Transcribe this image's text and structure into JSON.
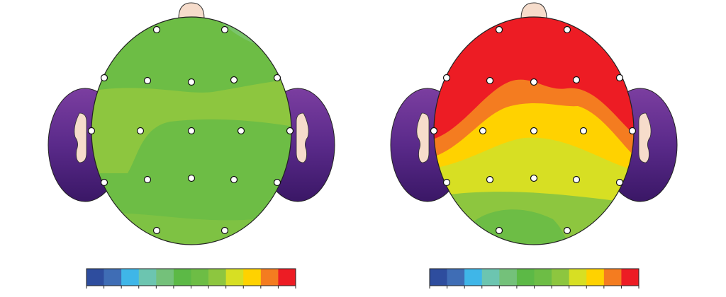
{
  "colorbar": {
    "colors": [
      "#2e4d9e",
      "#3f6db5",
      "#3fb6e8",
      "#6cc5b0",
      "#74c17a",
      "#5cb946",
      "#6dbd45",
      "#8dc63f",
      "#d7df23",
      "#ffd200",
      "#f47c20",
      "#ed1c24"
    ]
  }
}
